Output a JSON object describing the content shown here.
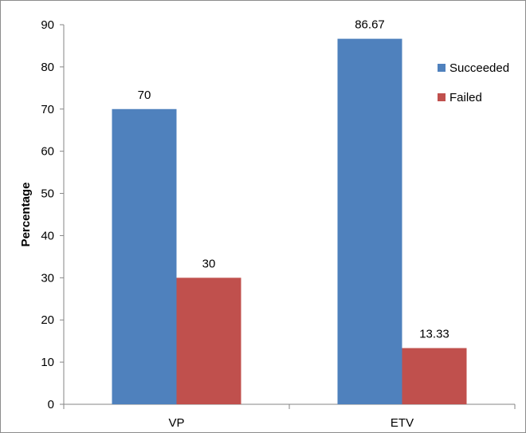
{
  "chart_data": {
    "type": "bar",
    "title": "",
    "xlabel": "",
    "ylabel": "Percentage",
    "categories": [
      "VP",
      "ETV"
    ],
    "series": [
      {
        "name": "Succeeded",
        "values": [
          70,
          86.67
        ],
        "labels": [
          "70",
          "86.67"
        ],
        "color": "#4f81bd"
      },
      {
        "name": "Failed",
        "values": [
          30,
          13.33
        ],
        "labels": [
          "30",
          "13.33"
        ],
        "color": "#c0504d"
      }
    ],
    "ylim": [
      0,
      90
    ],
    "yticks": [
      "0",
      "10",
      "20",
      "30",
      "40",
      "50",
      "60",
      "70",
      "80",
      "90"
    ],
    "grid": false,
    "legend_position": "top-right"
  }
}
